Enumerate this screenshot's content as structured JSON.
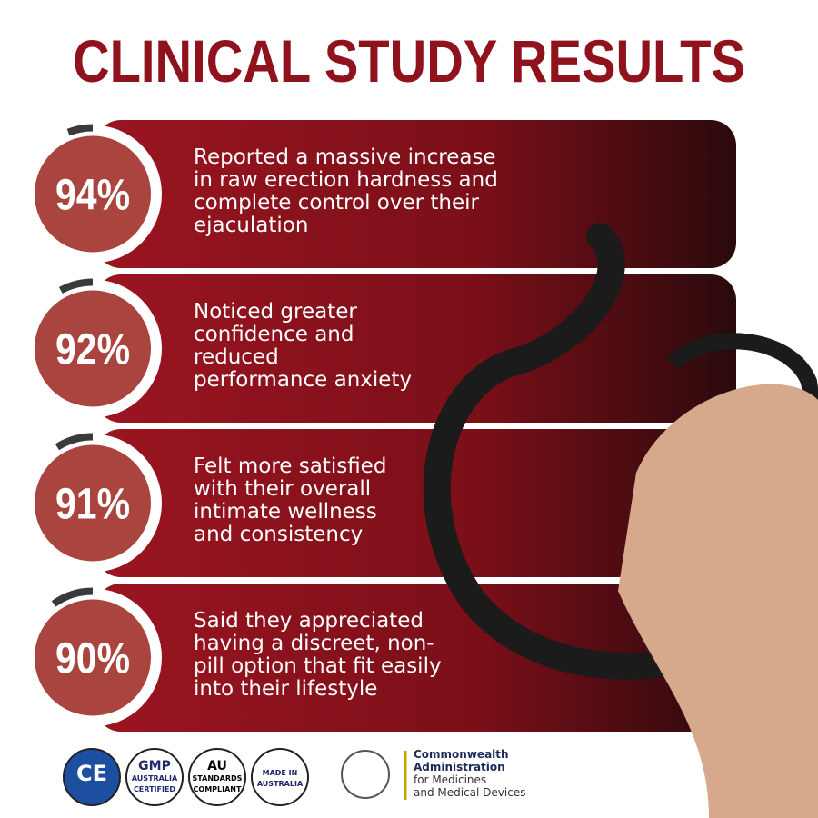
{
  "header": {
    "title": "CLINICAL STUDY RESULTS"
  },
  "stats": [
    {
      "value": 94,
      "label": "94%",
      "lines": [
        "Reported a massive increase",
        "in raw erection hardness and",
        "complete control over their",
        "ejaculation"
      ]
    },
    {
      "value": 92,
      "label": "92%",
      "lines": [
        "Noticed greater",
        "confidence and",
        "reduced",
        "performance anxiety"
      ]
    },
    {
      "value": 91,
      "label": "91%",
      "lines": [
        "Felt more satisfied",
        "with their overall",
        "intimate wellness",
        "and consistency"
      ]
    },
    {
      "value": 90,
      "label": "90%",
      "lines": [
        "Said they appreciated",
        "having a discreet, non-",
        "pill option that fit easily",
        "into their lifestyle"
      ]
    }
  ],
  "badges": [
    {
      "lines": [
        "CE"
      ]
    },
    {
      "lines": [
        "GMP",
        "AUSTRALIA",
        "CERTIFIED"
      ]
    },
    {
      "lines": [
        "AU",
        "STANDARDS",
        "COMPLIANT"
      ]
    },
    {
      "lines": [
        "MADE IN",
        "AUSTRALIA"
      ]
    }
  ],
  "agency": {
    "lines": [
      "Commonwealth",
      "Administration",
      "for Medicines",
      "and Medical Devices"
    ]
  }
}
